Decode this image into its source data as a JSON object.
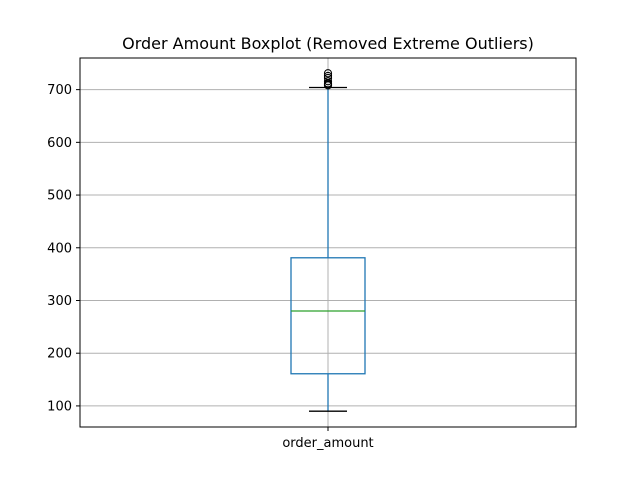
{
  "chart_data": {
    "type": "boxplot",
    "title": "Order Amount Boxplot (Removed Extreme Outliers)",
    "categories": [
      "order_amount"
    ],
    "ylim": [
      60,
      760
    ],
    "yticks": [
      100,
      200,
      300,
      400,
      500,
      600,
      700
    ],
    "grid": true,
    "boxes": [
      {
        "category": "order_amount",
        "whisker_low": 90,
        "q1": 161,
        "median": 280,
        "q3": 381,
        "whisker_high": 704,
        "outliers": [
          708,
          710,
          712,
          716,
          722,
          726,
          731
        ]
      }
    ],
    "colors": {
      "box": "#1f77b4",
      "median": "#2ca02c",
      "whisker_cap": "#000000",
      "outlier": "#000000",
      "grid": "#b0b0b0"
    }
  }
}
